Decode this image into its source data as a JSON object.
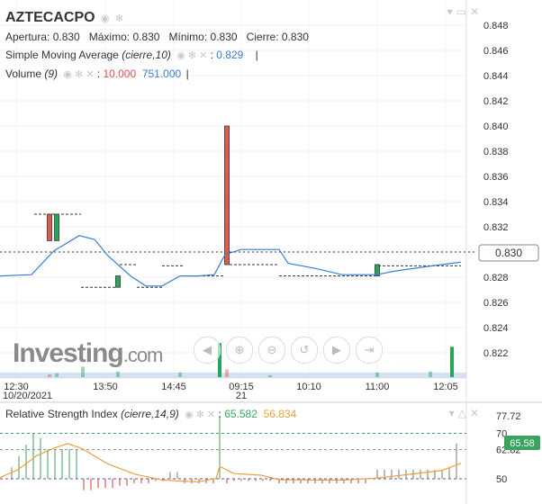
{
  "header": {
    "symbol": "AZTECACPO",
    "apertura_label": "Apertura:",
    "apertura": "0.830",
    "maximo_label": "Máximo:",
    "maximo": "0.830",
    "minimo_label": "Mínimo:",
    "minimo": "0.830",
    "cierre_label": "Cierre:",
    "cierre": "0.830",
    "sma_label": "Simple Moving Average",
    "sma_params": "(cierre,10)",
    "sma_value": "0.829",
    "volume_label": "Volume",
    "volume_params": "(9)",
    "volume_value_1": "10.000",
    "volume_value_2": "751.000"
  },
  "rsi_header": {
    "label": "Relative Strength Index",
    "params": "(cierre,14,9)",
    "value_1": "65.582",
    "value_2": "56.834"
  },
  "price_tag": "0.830",
  "rsi_tag": "65.58",
  "logo": {
    "text": "Investing",
    "suffix": ".com"
  },
  "colors": {
    "up": "#26a65b",
    "down": "#e05a4f",
    "sma": "#3b7dd8",
    "rsi_orange": "#e8a23a",
    "rsi_green_level": "#3aa35f",
    "rsi_purple_level": "#6a4ca0"
  },
  "chart_data": [
    {
      "type": "candlestick",
      "title": "AZTECACPO",
      "x_tick_labels": [
        "12:30",
        "13:50",
        "14:45",
        "09:15",
        "10:10",
        "11:00",
        "12:05"
      ],
      "x_date_labels": [
        "10/20/2021",
        "21"
      ],
      "y_tick_labels": [
        "0.848",
        "0.846",
        "0.844",
        "0.842",
        "0.840",
        "0.838",
        "0.836",
        "0.834",
        "0.832",
        "0.830",
        "0.828",
        "0.826",
        "0.824",
        "0.822"
      ],
      "ylim": [
        0.8202,
        0.8495
      ],
      "last_price": 0.83,
      "flat_levels": [
        {
          "y": 0.833,
          "from": 38,
          "to": 90
        },
        {
          "y": 0.8272,
          "from": 90,
          "to": 130
        },
        {
          "y": 0.829,
          "from": 133,
          "to": 152
        },
        {
          "y": 0.8272,
          "from": 152,
          "to": 180
        },
        {
          "y": 0.8289,
          "from": 180,
          "to": 205
        },
        {
          "y": 0.8281,
          "from": 210,
          "to": 250
        },
        {
          "y": 0.829,
          "from": 255,
          "to": 310
        },
        {
          "y": 0.8281,
          "from": 310,
          "to": 420
        },
        {
          "y": 0.8289,
          "from": 420,
          "to": 512
        }
      ],
      "candles": [
        {
          "x": 55,
          "open": 0.833,
          "close": 0.8309,
          "dir": "down"
        },
        {
          "x": 63,
          "open": 0.8309,
          "close": 0.833,
          "dir": "up"
        },
        {
          "x": 131,
          "open": 0.8272,
          "close": 0.8281,
          "dir": "up"
        },
        {
          "x": 252,
          "open": 0.84,
          "close": 0.829,
          "dir": "down"
        },
        {
          "x": 419,
          "open": 0.8281,
          "close": 0.829,
          "dir": "up"
        }
      ],
      "sma": {
        "name": "Simple Moving Average",
        "x": [
          0,
          35,
          60,
          88,
          105,
          120,
          145,
          162,
          180,
          200,
          220,
          238,
          250,
          268,
          310,
          320,
          350,
          380,
          418,
          440,
          480,
          512
        ],
        "y": [
          0.8281,
          0.8282,
          0.8301,
          0.8313,
          0.831,
          0.8297,
          0.8281,
          0.8273,
          0.8273,
          0.8281,
          0.8281,
          0.8282,
          0.8298,
          0.8302,
          0.8302,
          0.8291,
          0.8287,
          0.8282,
          0.8282,
          0.8285,
          0.8289,
          0.8292
        ]
      },
      "volume": {
        "bars": [
          {
            "x": 55,
            "v": 3,
            "dir": "down"
          },
          {
            "x": 63,
            "v": 4,
            "dir": "up"
          },
          {
            "x": 92,
            "v": 11,
            "dir": "up"
          },
          {
            "x": 131,
            "v": 6,
            "dir": "up"
          },
          {
            "x": 200,
            "v": 5,
            "dir": "up"
          },
          {
            "x": 244,
            "v": 36,
            "dir": "up"
          },
          {
            "x": 252,
            "v": 8,
            "dir": "down"
          },
          {
            "x": 300,
            "v": 2,
            "dir": "up"
          },
          {
            "x": 419,
            "v": 5,
            "dir": "up"
          },
          {
            "x": 478,
            "v": 6,
            "dir": "up"
          },
          {
            "x": 502,
            "v": 32,
            "dir": "up"
          }
        ]
      }
    },
    {
      "type": "line",
      "title": "Relative Strength Index",
      "y_tick_labels": [
        "77.72",
        "70",
        "62.82",
        "50"
      ],
      "ylim": [
        45.7,
        81.8
      ],
      "levels": [
        70,
        62.82,
        50
      ],
      "series": [
        {
          "name": "RSI",
          "x": [
            0,
            20,
            40,
            60,
            75,
            90,
            105,
            120,
            150,
            180,
            200,
            220,
            240,
            244,
            260,
            290,
            310,
            340,
            380,
            420,
            460,
            490,
            512
          ],
          "y": [
            50.5,
            54,
            60,
            63.5,
            65.5,
            63.5,
            60,
            56.5,
            52,
            49.5,
            49,
            48.7,
            50.2,
            55.5,
            52.3,
            51.6,
            49.6,
            49.5,
            49.4,
            50.3,
            52.2,
            53.6,
            56.8
          ]
        }
      ],
      "histogram": [
        {
          "x": 5,
          "v": 50
        },
        {
          "x": 13,
          "v": 55
        },
        {
          "x": 21,
          "v": 60
        },
        {
          "x": 29,
          "v": 65
        },
        {
          "x": 37,
          "v": 70
        },
        {
          "x": 45,
          "v": 68
        },
        {
          "x": 53,
          "v": 63
        },
        {
          "x": 61,
          "v": 63
        },
        {
          "x": 69,
          "v": 63
        },
        {
          "x": 77,
          "v": 63
        },
        {
          "x": 85,
          "v": 63
        },
        {
          "x": 93,
          "v": 45
        },
        {
          "x": 101,
          "v": 45
        },
        {
          "x": 109,
          "v": 46
        },
        {
          "x": 117,
          "v": 46
        },
        {
          "x": 125,
          "v": 46
        },
        {
          "x": 133,
          "v": 47
        },
        {
          "x": 141,
          "v": 47
        },
        {
          "x": 149,
          "v": 48
        },
        {
          "x": 157,
          "v": 48
        },
        {
          "x": 165,
          "v": 48
        },
        {
          "x": 173,
          "v": 49
        },
        {
          "x": 181,
          "v": 49
        },
        {
          "x": 189,
          "v": 53
        },
        {
          "x": 197,
          "v": 53
        },
        {
          "x": 205,
          "v": 48
        },
        {
          "x": 213,
          "v": 48
        },
        {
          "x": 221,
          "v": 48
        },
        {
          "x": 229,
          "v": 48
        },
        {
          "x": 237,
          "v": 48
        },
        {
          "x": 244,
          "v": 77.7
        },
        {
          "x": 252,
          "v": 48
        },
        {
          "x": 260,
          "v": 49
        },
        {
          "x": 268,
          "v": 49
        },
        {
          "x": 276,
          "v": 49
        },
        {
          "x": 284,
          "v": 49
        },
        {
          "x": 292,
          "v": 49
        },
        {
          "x": 300,
          "v": 49
        },
        {
          "x": 310,
          "v": 48
        },
        {
          "x": 318,
          "v": 48
        },
        {
          "x": 326,
          "v": 48
        },
        {
          "x": 334,
          "v": 48
        },
        {
          "x": 342,
          "v": 48
        },
        {
          "x": 350,
          "v": 48
        },
        {
          "x": 358,
          "v": 48
        },
        {
          "x": 366,
          "v": 48
        },
        {
          "x": 374,
          "v": 48
        },
        {
          "x": 382,
          "v": 48
        },
        {
          "x": 390,
          "v": 48
        },
        {
          "x": 398,
          "v": 48
        },
        {
          "x": 406,
          "v": 48
        },
        {
          "x": 419,
          "v": 54
        },
        {
          "x": 427,
          "v": 54
        },
        {
          "x": 435,
          "v": 54
        },
        {
          "x": 443,
          "v": 54
        },
        {
          "x": 451,
          "v": 54
        },
        {
          "x": 459,
          "v": 54
        },
        {
          "x": 467,
          "v": 54
        },
        {
          "x": 475,
          "v": 54
        },
        {
          "x": 483,
          "v": 54
        },
        {
          "x": 491,
          "v": 54
        },
        {
          "x": 499,
          "v": 55
        },
        {
          "x": 507,
          "v": 65.6
        }
      ]
    }
  ]
}
